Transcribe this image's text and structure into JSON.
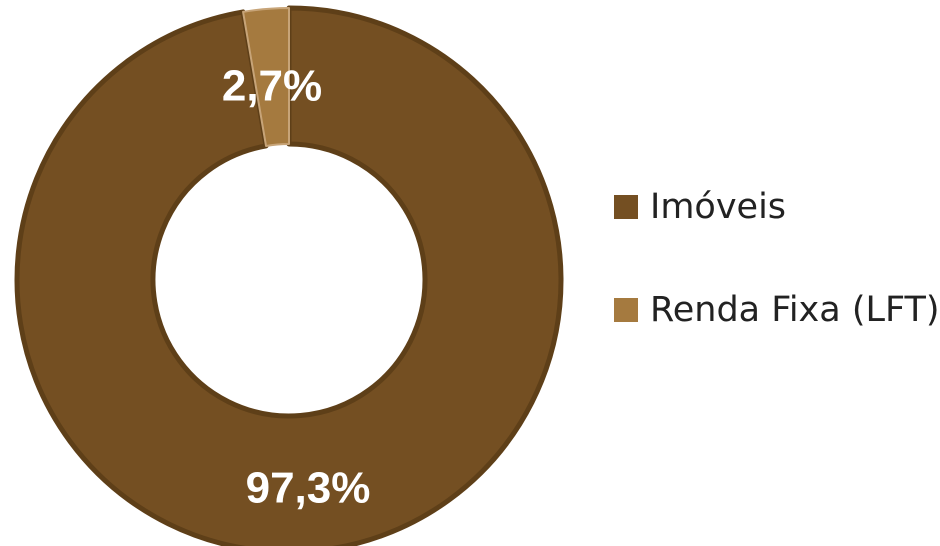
{
  "chart_data": {
    "type": "pie",
    "variant": "donut",
    "title": "",
    "categories": [
      "Imóveis",
      "Renda Fixa (LFT)"
    ],
    "values": [
      97.3,
      2.7
    ],
    "value_labels": [
      "97,3%",
      "2,7%"
    ],
    "colors": [
      "#744f22",
      "#a57a3f"
    ],
    "legend_position": "right"
  }
}
